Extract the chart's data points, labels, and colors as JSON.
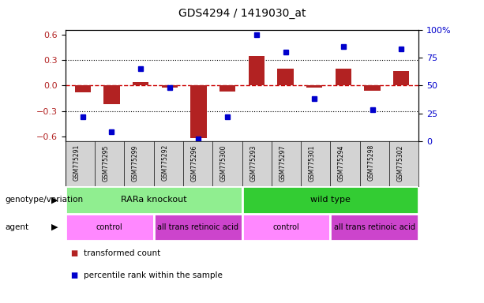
{
  "title": "GDS4294 / 1419030_at",
  "samples": [
    "GSM775291",
    "GSM775295",
    "GSM775299",
    "GSM775292",
    "GSM775296",
    "GSM775300",
    "GSM775293",
    "GSM775297",
    "GSM775301",
    "GSM775294",
    "GSM775298",
    "GSM775302"
  ],
  "bar_values": [
    -0.08,
    -0.22,
    0.04,
    -0.02,
    -0.62,
    -0.07,
    0.35,
    0.2,
    -0.02,
    0.2,
    -0.06,
    0.17
  ],
  "dot_values": [
    22,
    8,
    65,
    48,
    2,
    22,
    96,
    80,
    38,
    85,
    28,
    83
  ],
  "ylim_left": [
    -0.65,
    0.65
  ],
  "ylim_right": [
    0,
    100
  ],
  "yticks_left": [
    -0.6,
    -0.3,
    0.0,
    0.3,
    0.6
  ],
  "yticks_right": [
    0,
    25,
    50,
    75,
    100
  ],
  "bar_color": "#B22222",
  "dot_color": "#0000CC",
  "zero_line_color": "#CC0000",
  "grid_color": "#000000",
  "xlabels_bg": "#D3D3D3",
  "genotype_groups": [
    {
      "label": "RARa knockout",
      "start": 0,
      "end": 6,
      "color": "#90EE90"
    },
    {
      "label": "wild type",
      "start": 6,
      "end": 12,
      "color": "#33CC33"
    }
  ],
  "agent_groups": [
    {
      "label": "control",
      "start": 0,
      "end": 3,
      "color": "#FF88FF"
    },
    {
      "label": "all trans retinoic acid",
      "start": 3,
      "end": 6,
      "color": "#CC44CC"
    },
    {
      "label": "control",
      "start": 6,
      "end": 9,
      "color": "#FF88FF"
    },
    {
      "label": "all trans retinoic acid",
      "start": 9,
      "end": 12,
      "color": "#CC44CC"
    }
  ],
  "legend_items": [
    {
      "label": "transformed count",
      "color": "#B22222"
    },
    {
      "label": "percentile rank within the sample",
      "color": "#0000CC"
    }
  ],
  "genotype_label": "genotype/variation",
  "agent_label": "agent",
  "title_fontsize": 10,
  "tick_fontsize": 7,
  "label_fontsize": 8
}
